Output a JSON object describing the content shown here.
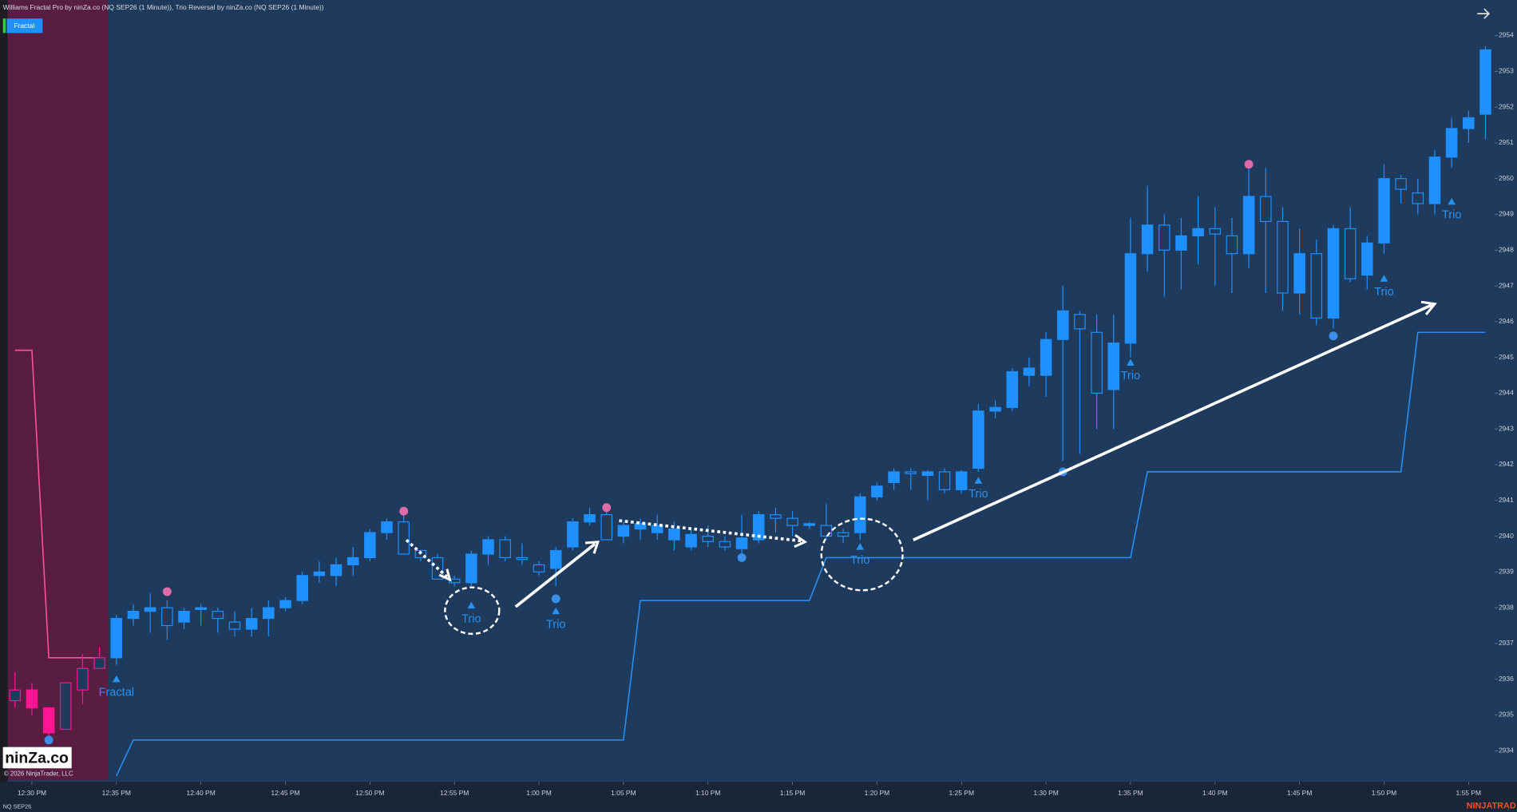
{
  "header": {
    "title": "Williams Fractal Pro by ninZa.co (NQ SEP26 (1 Minute)), Trio Reversal by ninZa.co (NQ SEP26 (1 Minute))",
    "button": "Fractal"
  },
  "footer": {
    "logo": "ninZa.co",
    "copyright": "© 2026 NinjaTrader, LLC",
    "instrument": "NQ SEP26",
    "brand": "NINJATRAD"
  },
  "chart_data": {
    "type": "candlestick",
    "xlim": [
      28.57,
      116.55
    ],
    "ylim": [
      2933.13,
      2954.99
    ],
    "xticks": [
      {
        "value": 30,
        "label": "12:30 PM"
      },
      {
        "value": 35,
        "label": "12:35 PM"
      },
      {
        "value": 40,
        "label": "12:40 PM"
      },
      {
        "value": 45,
        "label": "12:45 PM"
      },
      {
        "value": 50,
        "label": "12:50 PM"
      },
      {
        "value": 55,
        "label": "12:55 PM"
      },
      {
        "value": 60,
        "label": "1:00 PM"
      },
      {
        "value": 65,
        "label": "1:05 PM"
      },
      {
        "value": 70,
        "label": "1:10 PM"
      },
      {
        "value": 75,
        "label": "1:15 PM"
      },
      {
        "value": 80,
        "label": "1:20 PM"
      },
      {
        "value": 85,
        "label": "1:25 PM"
      },
      {
        "value": 90,
        "label": "1:30 PM"
      },
      {
        "value": 95,
        "label": "1:35 PM"
      },
      {
        "value": 100,
        "label": "1:40 PM"
      },
      {
        "value": 105,
        "label": "1:45 PM"
      },
      {
        "value": 110,
        "label": "1:50 PM"
      },
      {
        "value": 115,
        "label": "1:55 PM"
      }
    ],
    "yticks": [
      2934,
      2935,
      2936,
      2937,
      2938,
      2939,
      2940,
      2941,
      2942,
      2943,
      2944,
      2945,
      2946,
      2947,
      2948,
      2949,
      2950,
      2951,
      2952,
      2953,
      2954
    ],
    "series": [
      {
        "color": "#ff1493",
        "x": [
          29,
          30,
          31,
          32,
          33,
          34
        ],
        "open": [
          2935.7,
          2935.2,
          2934.5,
          2935.9,
          2936.3,
          2936.6
        ],
        "high": [
          2936.2,
          2935.9,
          2935.2,
          2935.9,
          2936.7,
          2936.9
        ],
        "low": [
          2935.2,
          2935.0,
          2934.3,
          2934.6,
          2935.3,
          2936.3
        ],
        "close": [
          2935.4,
          2935.7,
          2935.2,
          2934.6,
          2935.7,
          2936.3
        ]
      },
      {
        "color": "#1e90ff",
        "x": [
          35,
          36,
          37,
          38,
          39,
          40,
          41,
          42,
          43,
          44,
          45,
          46,
          47,
          48,
          49,
          50,
          51,
          52,
          53,
          54,
          55,
          56,
          57,
          58,
          59,
          60,
          61,
          62,
          63,
          64,
          65,
          66,
          67,
          68,
          69,
          70,
          71,
          72,
          73,
          74,
          75,
          76,
          77,
          78,
          79,
          80,
          81,
          82,
          83,
          84,
          85,
          86,
          87,
          88,
          89,
          90,
          91,
          92,
          93,
          94,
          95,
          96,
          97,
          98,
          99,
          100,
          101,
          102,
          103,
          104,
          105,
          106,
          107,
          108,
          109,
          110,
          111,
          112,
          113,
          114,
          115,
          116
        ],
        "open": [
          2936.6,
          2937.7,
          2937.9,
          2938.0,
          2937.6,
          2937.95,
          2937.9,
          2937.6,
          2937.4,
          2937.7,
          2938.0,
          2938.2,
          2938.9,
          2938.9,
          2939.2,
          2939.4,
          2940.1,
          2940.4,
          2939.6,
          2939.4,
          2938.8,
          2938.7,
          2939.5,
          2939.9,
          2939.4,
          2939.2,
          2939.1,
          2939.7,
          2940.4,
          2940.6,
          2940.0,
          2940.2,
          2940.1,
          2939.9,
          2939.7,
          2940.0,
          2939.85,
          2939.65,
          2939.9,
          2940.6,
          2940.5,
          2940.3,
          2940.3,
          2940.1,
          2940.1,
          2941.1,
          2941.5,
          2941.8,
          2941.7,
          2941.8,
          2941.3,
          2941.9,
          2943.5,
          2943.6,
          2944.5,
          2944.5,
          2945.5,
          2946.2,
          2945.7,
          2944.1,
          2945.4,
          2947.9,
          2948.7,
          2948.0,
          2948.4,
          2948.6,
          2948.4,
          2947.9,
          2949.5,
          2948.8,
          2946.8,
          2947.9,
          2946.1,
          2948.6,
          2947.3,
          2948.2,
          2950.0,
          2949.6,
          2949.3,
          2950.6,
          2951.4,
          2951.8
        ],
        "high": [
          2937.8,
          2938.1,
          2938.4,
          2938.2,
          2938.0,
          2938.1,
          2938.0,
          2937.9,
          2938.0,
          2938.2,
          2938.3,
          2939.0,
          2939.3,
          2939.4,
          2939.7,
          2940.2,
          2940.5,
          2940.6,
          2939.6,
          2939.5,
          2938.9,
          2939.6,
          2940.0,
          2940.0,
          2939.8,
          2939.3,
          2939.7,
          2940.5,
          2940.8,
          2940.8,
          2940.4,
          2940.5,
          2940.6,
          2940.4,
          2940.2,
          2940.3,
          2940.0,
          2940.6,
          2940.7,
          2940.8,
          2940.7,
          2940.4,
          2940.9,
          2940.2,
          2941.2,
          2941.5,
          2941.9,
          2941.9,
          2941.85,
          2941.9,
          2941.85,
          2943.7,
          2943.8,
          2944.7,
          2945.0,
          2945.7,
          2947.0,
          2946.3,
          2946.2,
          2946.2,
          2948.9,
          2949.8,
          2949.0,
          2948.9,
          2949.5,
          2949.2,
          2948.9,
          2950.3,
          2950.3,
          2949.2,
          2948.6,
          2948.3,
          2948.7,
          2949.2,
          2948.4,
          2950.4,
          2950.1,
          2950.0,
          2950.8,
          2951.7,
          2951.9,
          2953.7
        ],
        "low": [
          2936.4,
          2937.5,
          2937.3,
          2937.1,
          2937.4,
          2937.5,
          2937.3,
          2937.2,
          2937.2,
          2937.2,
          2937.9,
          2938.1,
          2938.7,
          2938.6,
          2938.9,
          2939.3,
          2939.9,
          2939.5,
          2939.3,
          2938.8,
          2938.6,
          2938.6,
          2939.2,
          2939.3,
          2939.2,
          2938.9,
          2938.6,
          2939.6,
          2940.3,
          2939.9,
          2939.8,
          2939.9,
          2939.9,
          2939.6,
          2939.6,
          2939.7,
          2939.6,
          2939.5,
          2939.8,
          2940.1,
          2940.0,
          2940.2,
          2939.9,
          2939.8,
          2939.9,
          2941.0,
          2941.3,
          2941.3,
          2941.0,
          2941.2,
          2941.2,
          2941.8,
          2943.3,
          2943.5,
          2944.2,
          2943.9,
          2942.1,
          2942.3,
          2943.0,
          2943.0,
          2945.0,
          2947.4,
          2946.7,
          2946.9,
          2947.6,
          2947.0,
          2946.8,
          2947.5,
          2946.8,
          2946.3,
          2946.2,
          2945.9,
          2945.8,
          2947.1,
          2946.9,
          2947.9,
          2949.3,
          2949.0,
          2949.0,
          2950.3,
          2951.0,
          2951.1
        ],
        "close": [
          2937.7,
          2937.9,
          2938.0,
          2937.5,
          2937.9,
          2938.0,
          2937.7,
          2937.4,
          2937.7,
          2938.0,
          2938.2,
          2938.9,
          2939.0,
          2939.2,
          2939.4,
          2940.1,
          2940.4,
          2939.5,
          2939.4,
          2938.8,
          2938.7,
          2939.5,
          2939.9,
          2939.4,
          2939.35,
          2939.0,
          2939.6,
          2940.4,
          2940.6,
          2939.9,
          2940.3,
          2940.35,
          2940.3,
          2940.2,
          2940.05,
          2939.85,
          2939.7,
          2939.95,
          2940.6,
          2940.5,
          2940.3,
          2940.35,
          2940.0,
          2940.0,
          2941.1,
          2941.4,
          2941.8,
          2941.75,
          2941.8,
          2941.3,
          2941.8,
          2943.5,
          2943.6,
          2944.6,
          2944.7,
          2945.5,
          2946.3,
          2945.8,
          2944.0,
          2945.4,
          2947.9,
          2948.7,
          2948.0,
          2948.4,
          2948.6,
          2948.45,
          2947.9,
          2949.5,
          2948.8,
          2946.8,
          2947.9,
          2946.1,
          2948.6,
          2947.2,
          2948.2,
          2950.0,
          2949.7,
          2949.3,
          2950.6,
          2951.4,
          2951.7,
          2953.6
        ]
      }
    ],
    "lines": [
      {
        "color": "#ff4fa3",
        "x": [
          29,
          30,
          31,
          34
        ],
        "values": [
          2945.2,
          2945.2,
          2936.6,
          2936.6
        ]
      },
      {
        "color": "#2a8ef0",
        "x": [
          35,
          36,
          65,
          66,
          76,
          77,
          95,
          96,
          111,
          112,
          116
        ],
        "values": [
          2933.3,
          2934.3,
          2934.3,
          2938.2,
          2938.2,
          2939.4,
          2939.4,
          2941.8,
          2941.8,
          2945.7,
          2945.7
        ]
      }
    ],
    "dots": [
      {
        "color": "#e06aa8",
        "x": [
          38,
          52,
          64,
          102
        ],
        "values": [
          2938.45,
          2940.7,
          2940.8,
          2950.4
        ]
      },
      {
        "color": "#3a90e8",
        "x": [
          31,
          61,
          72,
          91,
          107
        ],
        "values": [
          2934.3,
          2938.25,
          2939.4,
          2941.8,
          2945.6
        ]
      }
    ],
    "annotations": [
      {
        "text": "Fractal",
        "x": 35,
        "y": 2936.0
      },
      {
        "text": "Trio",
        "x": 56,
        "y": 2938.06
      },
      {
        "text": "Trio",
        "x": 61,
        "y": 2937.9
      },
      {
        "text": "Trio",
        "x": 79,
        "y": 2939.7
      },
      {
        "text": "Trio",
        "x": 86,
        "y": 2941.55
      },
      {
        "text": "Trio",
        "x": 95,
        "y": 2944.85
      },
      {
        "text": "Trio",
        "x": 110,
        "y": 2947.2
      },
      {
        "text": "Trio",
        "x": 114,
        "y": 2949.35
      }
    ]
  }
}
